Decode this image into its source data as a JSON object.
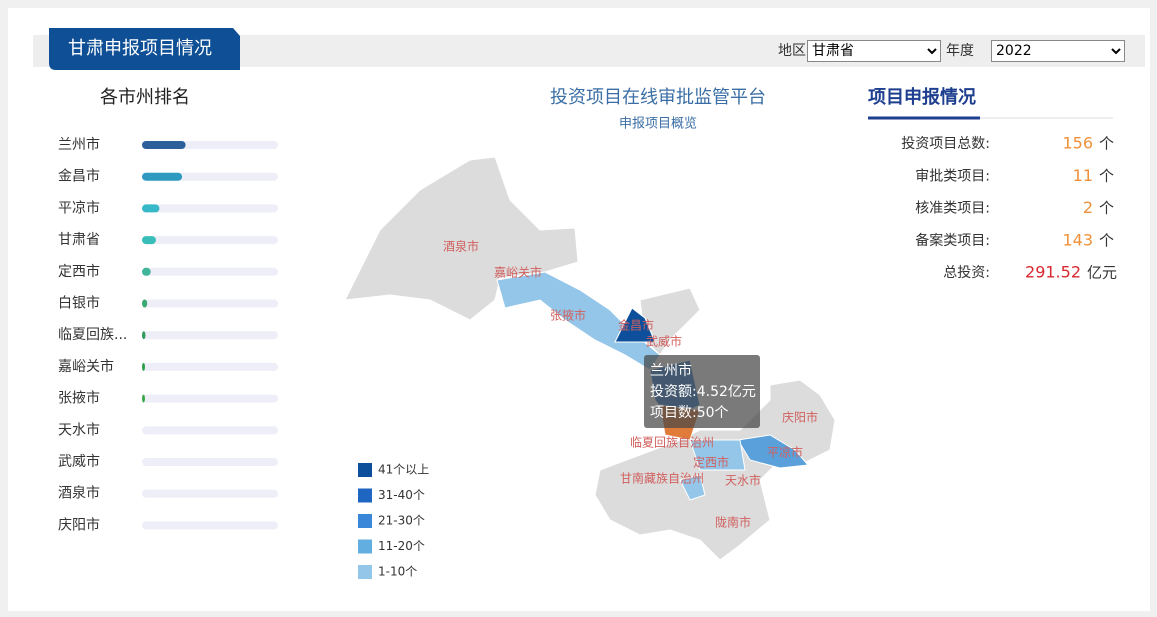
{
  "header": {
    "title": "甘肃申报项目情况",
    "filters": [
      {
        "label": "地区",
        "value": "甘肃省"
      },
      {
        "label": "年度",
        "value": "2022"
      }
    ]
  },
  "ranking": {
    "title": "各市州排名",
    "items": [
      {
        "name": "兰州市",
        "value": 50,
        "color": "#2d5f9a"
      },
      {
        "name": "金昌市",
        "value": 46,
        "color": "#2f9ac0"
      },
      {
        "name": "平凉市",
        "value": 20,
        "color": "#37b8c8"
      },
      {
        "name": "甘肃省",
        "value": 16,
        "color": "#38bdb8"
      },
      {
        "name": "定西市",
        "value": 10,
        "color": "#3fb59a"
      },
      {
        "name": "白银市",
        "value": 6,
        "color": "#3aa873"
      },
      {
        "name": "临夏回族...",
        "value": 4,
        "color": "#2f9c5a"
      },
      {
        "name": "嘉峪关市",
        "value": 2,
        "color": "#2ea04a"
      },
      {
        "name": "张掖市",
        "value": 2,
        "color": "#3aa64a"
      },
      {
        "name": "天水市",
        "value": 0,
        "color": "#3aa64a"
      },
      {
        "name": "武威市",
        "value": 0,
        "color": "#3aa64a"
      },
      {
        "name": "酒泉市",
        "value": 0,
        "color": "#3aa64a"
      },
      {
        "name": "庆阳市",
        "value": 0,
        "color": "#3aa64a"
      }
    ]
  },
  "map": {
    "title": "投资项目在线审批监管平台",
    "subtitle": "申报项目概览",
    "regions": [
      "酒泉市",
      "嘉峪关市",
      "张掖市",
      "金昌市",
      "武威市",
      "庆阳市",
      "临夏回族自治州",
      "平凉市",
      "定西市",
      "甘南藏族自治州",
      "天水市",
      "陇南市"
    ],
    "legend": [
      {
        "label": "41个以上",
        "color": "#0d4f9b"
      },
      {
        "label": "31-40个",
        "color": "#1f66c2"
      },
      {
        "label": "21-30个",
        "color": "#3a86d8"
      },
      {
        "label": "11-20个",
        "color": "#62aee0"
      },
      {
        "label": "1-10个",
        "color": "#93c6e8"
      }
    ],
    "tooltip": {
      "name": "兰州市",
      "lines": [
        "投资额:4.52亿元",
        "项目数:50个"
      ]
    }
  },
  "summary": {
    "title": "项目申报情况",
    "items": [
      {
        "label": "投资项目总数:",
        "value": 156,
        "unit": "个"
      },
      {
        "label": "审批类项目:",
        "value": 11,
        "unit": "个"
      },
      {
        "label": "核准类项目:",
        "value": 2,
        "unit": "个"
      },
      {
        "label": "备案类项目:",
        "value": 143,
        "unit": "个"
      },
      {
        "label": "总投资:",
        "value": 291.52,
        "unit": "亿元"
      }
    ]
  }
}
